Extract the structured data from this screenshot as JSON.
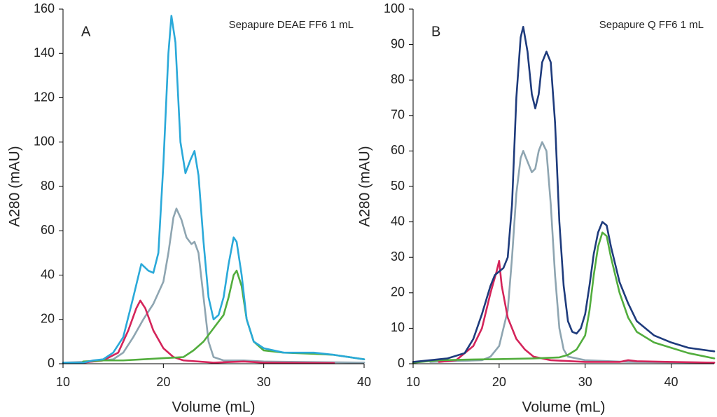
{
  "chart_data": [
    {
      "type": "line",
      "panel_label": "A",
      "annotation": "Sepapure DEAE FF6 1 mL",
      "x_label": "Volume (mL)",
      "y_label": "A280 (mAU)",
      "xlim": [
        10,
        40
      ],
      "xticks": [
        10,
        20,
        30,
        40
      ],
      "ylim": [
        0,
        160
      ],
      "yticks": [
        0,
        20,
        40,
        60,
        80,
        100,
        120,
        140,
        160
      ],
      "series": [
        {
          "color": "#8ea5b1",
          "x": [
            10,
            13,
            15,
            16,
            17,
            18,
            19,
            20,
            20.5,
            21,
            21.3,
            21.8,
            22.3,
            22.8,
            23.1,
            23.5,
            24,
            24.5,
            25,
            26,
            28,
            30,
            40
          ],
          "values": [
            0.5,
            1,
            2,
            5,
            12,
            20,
            27,
            37,
            50,
            66,
            70,
            65,
            57,
            54,
            55,
            50,
            30,
            10,
            3,
            1.5,
            1.5,
            1,
            0.5
          ]
        },
        {
          "color": "#d4245a",
          "x": [
            12,
            14,
            15.5,
            16.5,
            17.3,
            17.7,
            18.2,
            19,
            20,
            21,
            22,
            25,
            28,
            30,
            37
          ],
          "values": [
            0.5,
            1.5,
            5,
            15,
            25,
            28.5,
            25,
            15,
            7,
            3,
            1.5,
            0.5,
            1,
            0.5,
            0.3
          ]
        },
        {
          "color": "#52ad3d",
          "x": [
            12,
            14,
            16,
            18,
            20,
            22,
            23,
            24,
            25,
            26,
            26.5,
            27,
            27.3,
            27.8,
            28.3,
            29,
            30,
            32,
            35,
            37,
            40
          ],
          "values": [
            1,
            1.5,
            1.5,
            2,
            2.5,
            3,
            6,
            10,
            16,
            22,
            30,
            40,
            42,
            35,
            20,
            10,
            6,
            5,
            4.5,
            4,
            2
          ]
        },
        {
          "color": "#2aa9d9",
          "x": [
            10,
            12,
            13,
            14,
            15,
            16,
            17,
            17.8,
            18.5,
            19,
            19.5,
            20,
            20.5,
            20.8,
            21.2,
            21.7,
            22.2,
            22.7,
            23.1,
            23.5,
            24,
            24.5,
            25,
            25.5,
            26,
            26.5,
            27,
            27.3,
            27.8,
            28.3,
            29,
            30,
            32,
            35,
            37,
            40
          ],
          "values": [
            0.5,
            0.5,
            1.5,
            2,
            5,
            12,
            30,
            45,
            42,
            41,
            50,
            90,
            140,
            157,
            145,
            100,
            86,
            92,
            96,
            85,
            55,
            30,
            20,
            22,
            30,
            45,
            57,
            55,
            40,
            20,
            10,
            7,
            5,
            5,
            4,
            2
          ]
        }
      ]
    },
    {
      "type": "line",
      "panel_label": "B",
      "annotation": "Sepapure Q FF6 1 mL",
      "x_label": "Volume (mL)",
      "y_label": "A280 (mAU)",
      "xlim": [
        10,
        45
      ],
      "xticks": [
        10,
        20,
        30,
        40
      ],
      "ylim": [
        0,
        100
      ],
      "yticks": [
        0,
        10,
        20,
        30,
        40,
        50,
        60,
        70,
        80,
        90,
        100
      ],
      "series": [
        {
          "color": "#8ea5b1",
          "x": [
            12,
            18,
            19,
            20,
            21,
            21.5,
            22,
            22.5,
            22.8,
            23.3,
            23.8,
            24.2,
            24.6,
            25,
            25.5,
            26,
            26.5,
            27,
            27.5,
            28,
            30,
            35,
            45
          ],
          "values": [
            0.5,
            1,
            2,
            5,
            15,
            30,
            48,
            58,
            60,
            57,
            54,
            55,
            60,
            62.5,
            60,
            45,
            25,
            10,
            4,
            2,
            1,
            0.5,
            0.3
          ]
        },
        {
          "color": "#d4245a",
          "x": [
            13,
            15,
            17,
            18,
            19,
            19.7,
            20,
            20.3,
            21,
            22,
            23,
            24,
            26,
            30,
            34,
            35,
            36,
            40,
            45
          ],
          "values": [
            0.5,
            1,
            5,
            10,
            20,
            26,
            29,
            22,
            13,
            7,
            4,
            2,
            1,
            0.5,
            0.5,
            1,
            0.7,
            0.5,
            0.3
          ]
        },
        {
          "color": "#52ad3d",
          "x": [
            10,
            13,
            17,
            20,
            24,
            27,
            28,
            29,
            30,
            30.5,
            31,
            31.5,
            32,
            32.5,
            33,
            34,
            35,
            36,
            38,
            40,
            42,
            45
          ],
          "values": [
            0.3,
            1,
            1.2,
            1.3,
            1.5,
            1.8,
            2.5,
            4,
            8,
            15,
            25,
            33,
            37,
            36,
            30,
            20,
            13,
            9,
            6,
            4.5,
            3,
            1.5
          ]
        },
        {
          "color": "#1e3b7c",
          "x": [
            10,
            12,
            14,
            16,
            17,
            18,
            19,
            19.5,
            20,
            20.5,
            21,
            21.5,
            22,
            22.5,
            22.8,
            23.3,
            23.8,
            24.2,
            24.6,
            25,
            25.5,
            26,
            26.5,
            27,
            27.5,
            28,
            28.5,
            29,
            29.5,
            30,
            30.5,
            31,
            31.5,
            32,
            32.5,
            33,
            34,
            35,
            36,
            38,
            40,
            42,
            45
          ],
          "values": [
            0.5,
            1,
            1.5,
            3,
            7,
            14,
            22,
            25,
            26,
            27,
            30,
            45,
            75,
            92,
            95,
            88,
            76,
            72,
            76,
            85,
            88,
            85,
            68,
            40,
            22,
            12,
            9,
            8.5,
            10,
            14,
            22,
            31,
            37,
            40,
            39,
            33,
            23,
            17,
            12,
            8,
            6,
            4.5,
            3.5
          ]
        }
      ]
    }
  ]
}
